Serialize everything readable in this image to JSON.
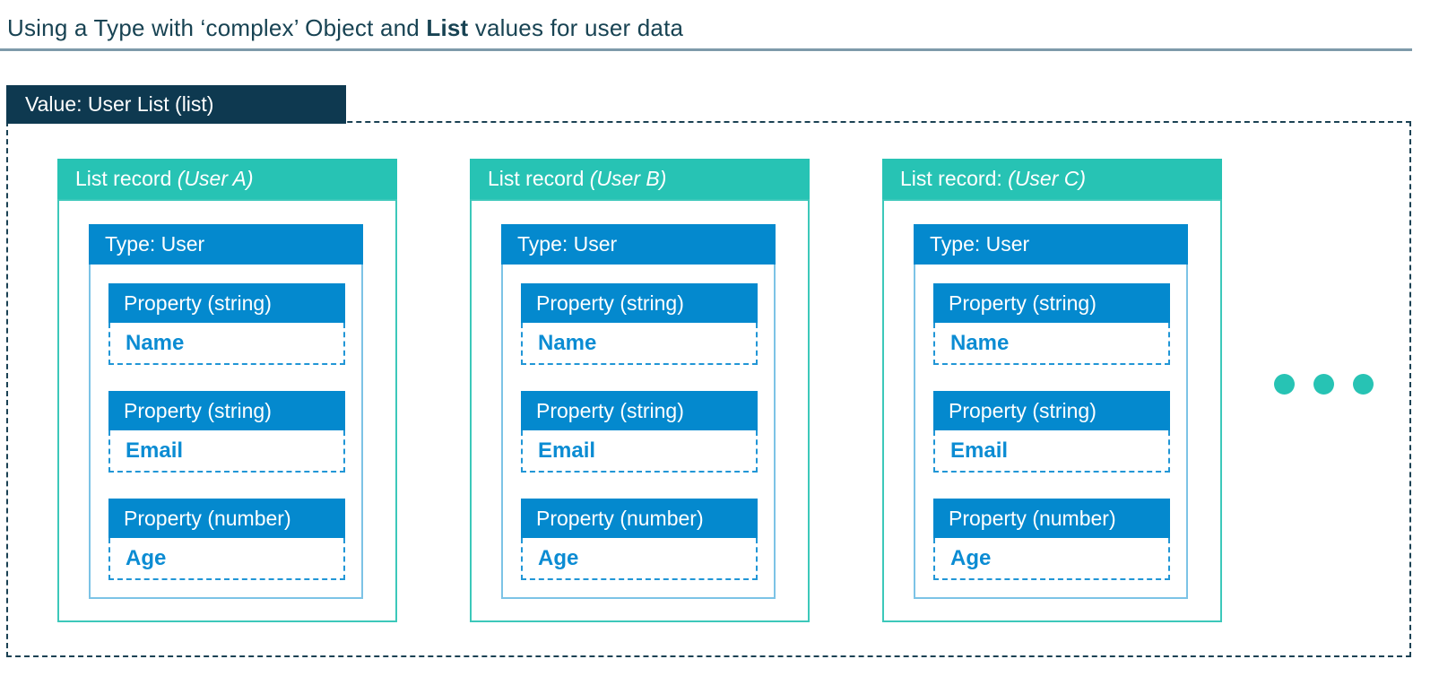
{
  "title": {
    "pre": "Using a Type with ‘complex’ Object and ",
    "bold": "List",
    "post": " values for user data"
  },
  "value_header": {
    "label": "Value: User List (list)"
  },
  "cards": [
    {
      "header_pre": "List record ",
      "header_user": "(User A)",
      "type_label": "Type: User",
      "properties": [
        {
          "label": "Property (string)",
          "value": "Name"
        },
        {
          "label": "Property (string)",
          "value": "Email"
        },
        {
          "label": "Property (number)",
          "value": "Age"
        }
      ]
    },
    {
      "header_pre": "List record ",
      "header_user": "(User B)",
      "type_label": "Type: User",
      "properties": [
        {
          "label": "Property (string)",
          "value": "Name"
        },
        {
          "label": "Property (string)",
          "value": "Email"
        },
        {
          "label": "Property (number)",
          "value": "Age"
        }
      ]
    },
    {
      "header_pre": "List record: ",
      "header_user": "(User C)",
      "type_label": "Type: User",
      "properties": [
        {
          "label": "Property (string)",
          "value": "Name"
        },
        {
          "label": "Property (string)",
          "value": "Email"
        },
        {
          "label": "Property (number)",
          "value": "Age"
        }
      ]
    }
  ],
  "ellipsis": {
    "count": 3
  },
  "colors": {
    "teal": "#27c3b4",
    "teal_border": "#3cc8ba",
    "blue": "#0489ce",
    "navy_box": "#0e3950",
    "dashed_container": "#1b4254",
    "inner_border_light_blue": "#7cc3e6",
    "dashed_value_blue": "#2196d6",
    "value_text_blue": "#0b8cd3",
    "title_text": "#184353",
    "underline": "#7e9aaa"
  }
}
